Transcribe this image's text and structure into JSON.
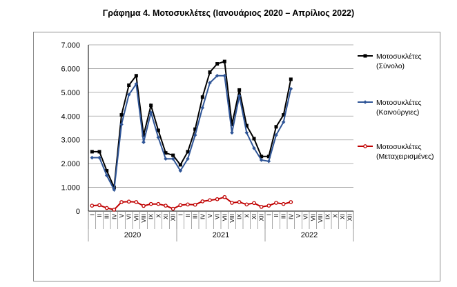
{
  "chart_data": {
    "type": "line",
    "title": "Γράφημα 4. Μοτοσυκλέτες (Ιανουάριος 2020 – Απρίλιος 2022)",
    "xlabel": "",
    "ylabel": "",
    "ylim": [
      0,
      7000
    ],
    "y_ticks": [
      "0",
      "1.000",
      "2.000",
      "3.000",
      "4.000",
      "5.000",
      "6.000",
      "7.000"
    ],
    "grid": true,
    "legend_position": "right",
    "x_month_labels": [
      "I",
      "II",
      "III",
      "IV",
      "V",
      "VI",
      "VII",
      "VIII",
      "IX",
      "X",
      "XI",
      "XII"
    ],
    "years": [
      "2020",
      "2021",
      "2022"
    ],
    "series": [
      {
        "name": "Μοτοσυκλέτες (Σύνολο)",
        "color": "#000000",
        "marker": "square",
        "values": [
          2500,
          2500,
          1700,
          1000,
          4050,
          5300,
          5700,
          3200,
          4450,
          3400,
          2450,
          2350,
          1950,
          2500,
          3450,
          4800,
          5850,
          6200,
          6300,
          3650,
          5100,
          3600,
          3050,
          2300,
          2300,
          3550,
          4050,
          5550
        ]
      },
      {
        "name": "Μοτοσυκλέτες (Καινούργιες)",
        "color": "#2f5597",
        "marker": "diamond",
        "values": [
          2250,
          2250,
          1500,
          900,
          3650,
          4900,
          5350,
          2900,
          4150,
          3100,
          2200,
          2200,
          1700,
          2200,
          3200,
          4350,
          5400,
          5700,
          5700,
          3300,
          4850,
          3300,
          2650,
          2150,
          2100,
          3200,
          3750,
          5150
        ]
      },
      {
        "name": "Μοτοσυκλέτες (Μεταχειρισμένες)",
        "color": "#c00000",
        "marker": "circle",
        "values": [
          230,
          250,
          130,
          60,
          380,
          400,
          380,
          220,
          300,
          300,
          230,
          100,
          250,
          280,
          270,
          410,
          460,
          500,
          590,
          350,
          380,
          280,
          340,
          180,
          230,
          350,
          300,
          380
        ]
      }
    ]
  }
}
